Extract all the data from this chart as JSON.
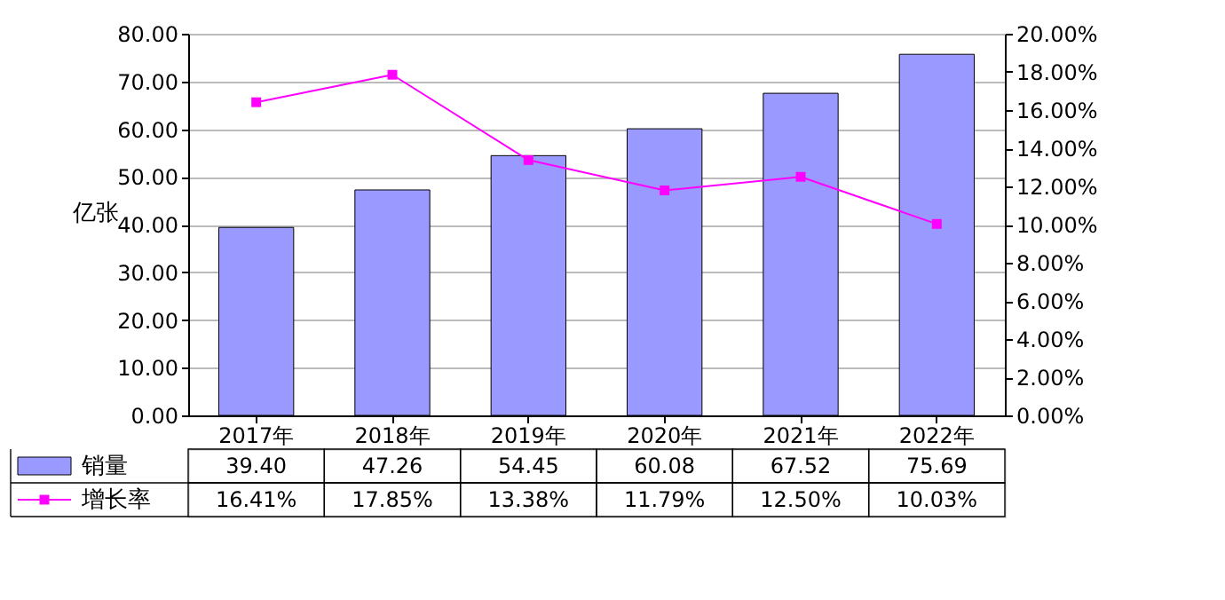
{
  "chart_data": {
    "type": "bar",
    "ylabel": "亿张",
    "categories": [
      "2017年",
      "2018年",
      "2019年",
      "2020年",
      "2021年",
      "2022年"
    ],
    "series": [
      {
        "name": "销量",
        "color": "#9999ff",
        "values": [
          39.4,
          47.26,
          54.45,
          60.08,
          67.52,
          75.69
        ],
        "value_labels": [
          "39.40",
          "47.26",
          "54.45",
          "60.08",
          "67.52",
          "75.69"
        ]
      },
      {
        "name": "增长率",
        "type": "line",
        "axis": "y2",
        "color": "#ff00ff",
        "marker": "square",
        "values": [
          16.41,
          17.85,
          13.38,
          11.79,
          12.5,
          10.03
        ],
        "value_labels": [
          "16.41%",
          "17.85%",
          "13.38%",
          "11.79%",
          "12.50%",
          "10.03%"
        ]
      }
    ],
    "ylim": [
      0,
      80
    ],
    "yticks": [
      {
        "value": 0,
        "label": "0.00"
      },
      {
        "value": 10,
        "label": "10.00"
      },
      {
        "value": 20,
        "label": "20.00"
      },
      {
        "value": 30,
        "label": "30.00"
      },
      {
        "value": 40,
        "label": "40.00"
      },
      {
        "value": 50,
        "label": "50.00"
      },
      {
        "value": 60,
        "label": "60.00"
      },
      {
        "value": 70,
        "label": "70.00"
      },
      {
        "value": 80,
        "label": "80.00"
      }
    ],
    "y2lim": [
      0,
      20
    ],
    "y2ticks": [
      {
        "value": 0,
        "label": "0.00%"
      },
      {
        "value": 2,
        "label": "2.00%"
      },
      {
        "value": 4,
        "label": "4.00%"
      },
      {
        "value": 6,
        "label": "6.00%"
      },
      {
        "value": 8,
        "label": "8.00%"
      },
      {
        "value": 10,
        "label": "10.00%"
      },
      {
        "value": 12,
        "label": "12.00%"
      },
      {
        "value": 14,
        "label": "14.00%"
      },
      {
        "value": 16,
        "label": "16.00%"
      },
      {
        "value": 18,
        "label": "18.00%"
      },
      {
        "value": 20,
        "label": "20.00%"
      }
    ],
    "grid": "y",
    "legend": "bottom",
    "data_labels": true
  }
}
